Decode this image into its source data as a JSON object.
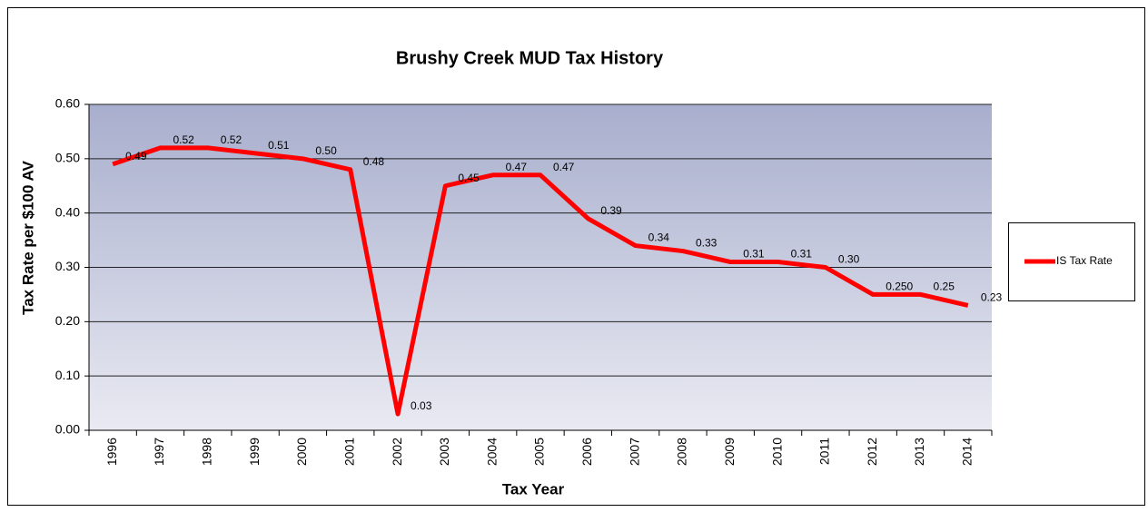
{
  "chart_data": {
    "type": "line",
    "title": "Brushy Creek MUD Tax History",
    "x_label": "Tax Year",
    "y_label": "Tax Rate per $100 AV",
    "categories": [
      "1996",
      "1997",
      "1998",
      "1999",
      "2000",
      "2001",
      "2002",
      "2003",
      "2004",
      "2005",
      "2006",
      "2007",
      "2008",
      "2009",
      "2010",
      "2011",
      "2012",
      "2013",
      "2014"
    ],
    "series": [
      {
        "name": "IS Tax Rate",
        "color": "#ff0000",
        "values": [
          0.49,
          0.52,
          0.52,
          0.51,
          0.5,
          0.48,
          0.03,
          0.45,
          0.47,
          0.47,
          0.39,
          0.34,
          0.33,
          0.31,
          0.31,
          0.3,
          0.25,
          0.25,
          0.23
        ],
        "value_labels": [
          "0.49",
          "0.52",
          "0.52",
          "0.51",
          "0.50",
          "0.48",
          "0.03",
          "0.45",
          "0.47",
          "0.47",
          "0.39",
          "0.34",
          "0.33",
          "0.31",
          "0.31",
          "0.30",
          "0.250",
          "0.25",
          "0.23"
        ]
      }
    ],
    "ylim": [
      0,
      0.6
    ],
    "yticks": [
      {
        "value": 0,
        "label": "0.00"
      },
      {
        "value": 0.1,
        "label": "0.10"
      },
      {
        "value": 0.2,
        "label": "0.20"
      },
      {
        "value": 0.3,
        "label": "0.30"
      },
      {
        "value": 0.4,
        "label": "0.40"
      },
      {
        "value": 0.5,
        "label": "0.50"
      },
      {
        "value": 0.6,
        "label": "0.60"
      }
    ],
    "grid": true,
    "legend": "right"
  }
}
